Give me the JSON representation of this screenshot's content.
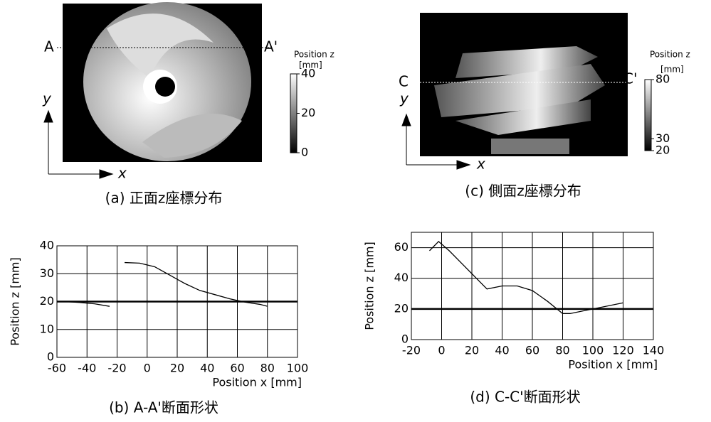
{
  "panels": [
    {
      "caption": "(a) 正面z座標分布",
      "section_start": "A",
      "section_end": "A'",
      "axis_x": "x",
      "axis_y": "y",
      "colorbar": {
        "title": "Position z",
        "unit": "[mm]",
        "lim": [
          0,
          40
        ],
        "ticks": [
          0,
          20,
          40
        ]
      }
    },
    {
      "caption": "(c) 側面z座標分布",
      "section_start": "C",
      "section_end": "C'",
      "axis_x": "x",
      "axis_y": "y",
      "colorbar": {
        "title": "Position z",
        "unit": "[mm]",
        "lim": [
          20,
          80
        ],
        "ticks": [
          20,
          30,
          80
        ]
      }
    }
  ],
  "chart_data": [
    {
      "type": "line",
      "caption": "(b) A-A'断面形状",
      "xlabel": "Position x [mm]",
      "ylabel": "Position z [mm]",
      "xlim": [
        -60,
        100
      ],
      "xticks": [
        -60,
        -40,
        -20,
        0,
        20,
        40,
        60,
        80,
        100
      ],
      "ylim": [
        0,
        40
      ],
      "yticks": [
        0,
        10,
        20,
        30,
        40
      ],
      "grid": true,
      "hline": 20,
      "x": [
        -55,
        -45,
        -35,
        -25,
        -20,
        -15,
        -5,
        5,
        15,
        25,
        35,
        45,
        55,
        65,
        75,
        80
      ],
      "series": [
        {
          "color": "#000000",
          "values": [
            20,
            19.7,
            19.2,
            18.3,
            null,
            34,
            33.8,
            32.5,
            29.5,
            26.5,
            24,
            22.5,
            21,
            19.8,
            19,
            18.3
          ]
        }
      ]
    },
    {
      "type": "line",
      "caption": "(d) C-C'断面形状",
      "xlabel": "Position x [mm]",
      "ylabel": "Position z [mm]",
      "xlim": [
        -20,
        140
      ],
      "xticks": [
        -20,
        0,
        20,
        40,
        60,
        80,
        100,
        120,
        140
      ],
      "ylim": [
        0,
        70
      ],
      "yticks": [
        0,
        20,
        40,
        60
      ],
      "grid": true,
      "hline": 20,
      "x": [
        -8,
        -2,
        5,
        15,
        25,
        30,
        40,
        50,
        60,
        70,
        80,
        85,
        95,
        105,
        120
      ],
      "series": [
        {
          "color": "#000000",
          "values": [
            58,
            64,
            58,
            48,
            38,
            33,
            35,
            35,
            32,
            25,
            17,
            17,
            19,
            21,
            24
          ]
        }
      ]
    }
  ]
}
